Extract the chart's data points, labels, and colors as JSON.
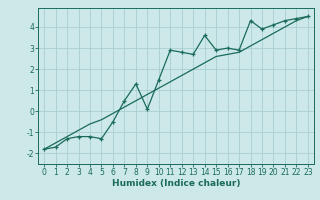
{
  "xlabel": "Humidex (Indice chaleur)",
  "ylabel": "",
  "background_color": "#cce8e8",
  "grid_color": "#aacfcf",
  "line_color": "#1a6b5a",
  "x_data": [
    0,
    1,
    2,
    3,
    4,
    5,
    6,
    7,
    8,
    9,
    10,
    11,
    12,
    13,
    14,
    15,
    16,
    17,
    18,
    19,
    20,
    21,
    22,
    23
  ],
  "y_zigzag": [
    -1.8,
    -1.7,
    -1.3,
    -1.2,
    -1.2,
    -1.3,
    -0.5,
    0.5,
    1.3,
    0.1,
    1.5,
    2.9,
    2.8,
    2.7,
    3.6,
    2.9,
    3.0,
    2.9,
    4.3,
    3.9,
    4.1,
    4.3,
    4.4,
    4.5
  ],
  "y_linear": [
    -1.8,
    -1.5,
    -1.2,
    -0.9,
    -0.6,
    -0.4,
    -0.1,
    0.2,
    0.5,
    0.8,
    1.1,
    1.4,
    1.7,
    2.0,
    2.3,
    2.6,
    2.7,
    2.8,
    3.1,
    3.4,
    3.7,
    4.0,
    4.3,
    4.5
  ],
  "xlim": [
    -0.5,
    23.5
  ],
  "ylim": [
    -2.5,
    4.9
  ],
  "yticks": [
    -2,
    -1,
    0,
    1,
    2,
    3,
    4
  ],
  "xticks": [
    0,
    1,
    2,
    3,
    4,
    5,
    6,
    7,
    8,
    9,
    10,
    11,
    12,
    13,
    14,
    15,
    16,
    17,
    18,
    19,
    20,
    21,
    22,
    23
  ],
  "tick_fontsize": 5.5,
  "xlabel_fontsize": 6.5,
  "linewidth": 0.9,
  "marker_size": 3.5
}
